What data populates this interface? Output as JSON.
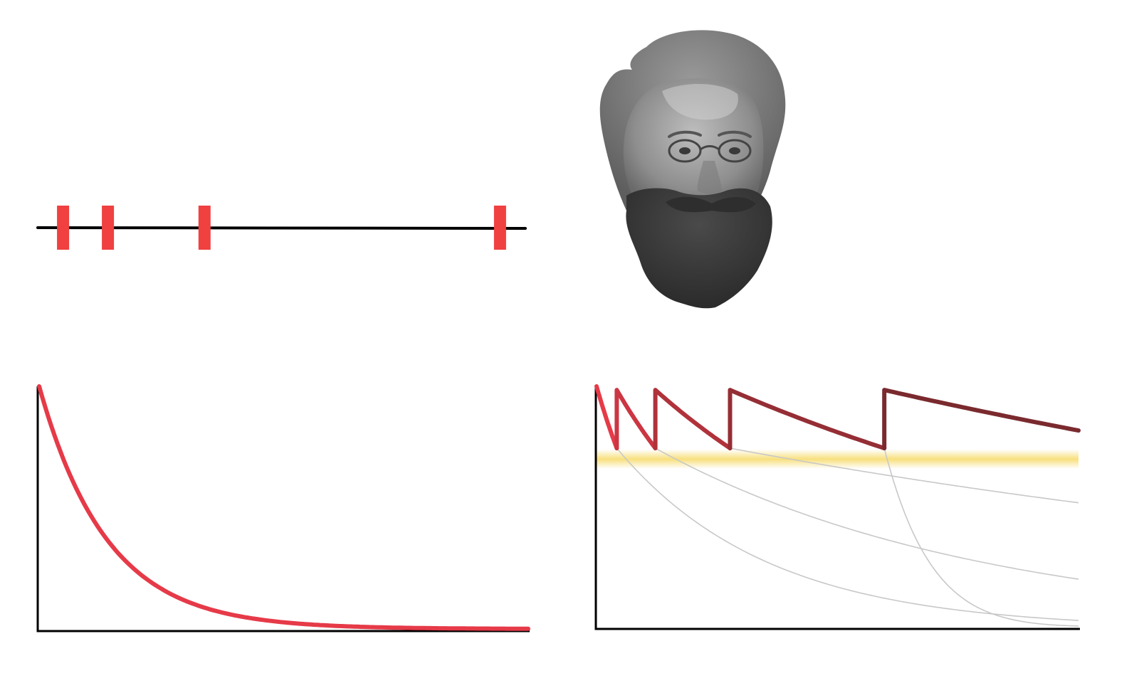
{
  "colors": {
    "background": "#ffffff",
    "axis": "#000000",
    "review_mark": "#f04040",
    "curve_first": "#e63a48",
    "curve_last": "#7a2a2e",
    "faded_curve": "#c8c8c8",
    "retention_band": "#f7dc6f"
  },
  "icons": {
    "portrait": "bearded-man-with-spectacles-portrait"
  },
  "timeline": {
    "range": [
      0,
      1
    ],
    "review_positions": [
      0.052,
      0.144,
      0.342,
      0.948
    ]
  },
  "forgetting_curve": {
    "retention_start": 1.0,
    "decay_rate": 7.2,
    "x_range": [
      0,
      1
    ],
    "y_range": [
      0,
      1
    ]
  },
  "spaced_repetition": {
    "x_range": [
      0,
      1
    ],
    "y_range": [
      0,
      1
    ],
    "band_range": [
      0.66,
      0.74
    ],
    "segments": [
      {
        "t_start": 0.0,
        "t_end": 0.042,
        "r_start": 1.0,
        "r_end": 0.745
      },
      {
        "t_start": 0.042,
        "t_end": 0.122,
        "r_start": 0.985,
        "r_end": 0.745
      },
      {
        "t_start": 0.122,
        "t_end": 0.277,
        "r_start": 0.985,
        "r_end": 0.745
      },
      {
        "t_start": 0.277,
        "t_end": 0.597,
        "r_start": 0.985,
        "r_end": 0.745
      },
      {
        "t_start": 0.597,
        "t_end": 1.0,
        "r_start": 0.985,
        "r_end": 0.818
      }
    ],
    "faded_curves": [
      {
        "t_start": 0.042,
        "r_start": 0.745,
        "r_end": 0.035
      },
      {
        "t_start": 0.122,
        "r_start": 0.745,
        "r_end": 0.205
      },
      {
        "t_start": 0.277,
        "r_start": 0.745,
        "r_end": 0.52
      },
      {
        "t_start": 0.597,
        "r_start": 0.745,
        "r_end": 0.0
      }
    ]
  }
}
